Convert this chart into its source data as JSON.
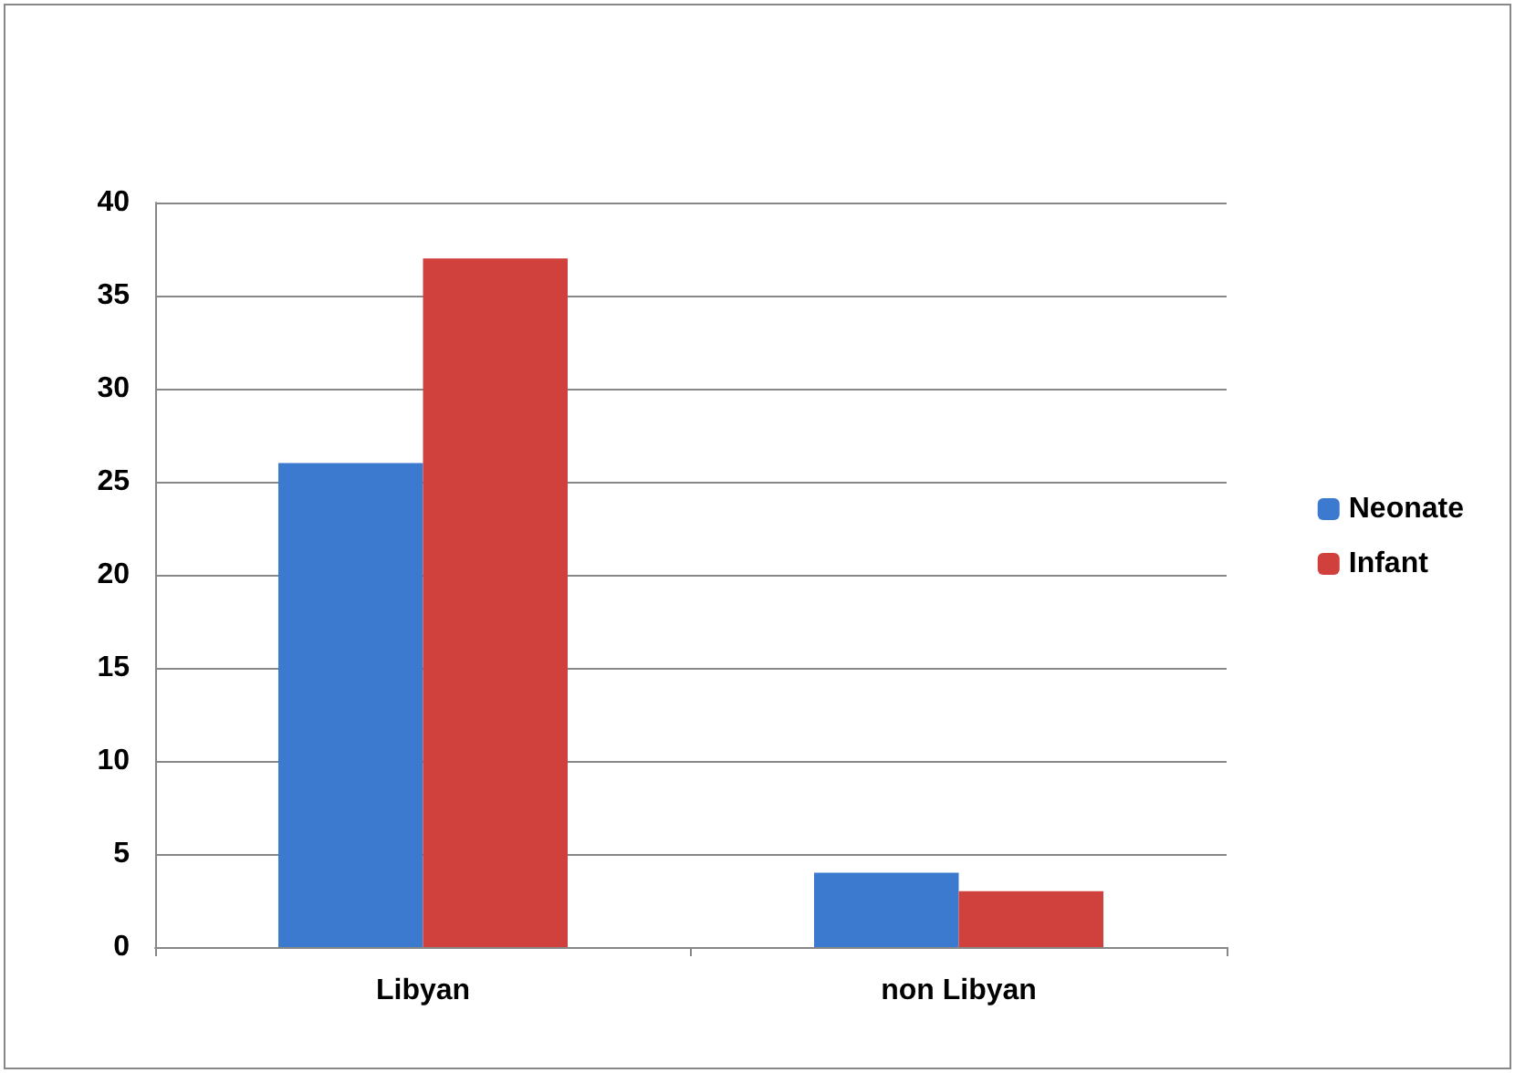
{
  "chart_data": {
    "type": "bar",
    "categories": [
      "Libyan",
      "non Libyan"
    ],
    "series": [
      {
        "name": "Neonate",
        "color": "#3c7ad0",
        "values": [
          26,
          4
        ]
      },
      {
        "name": "Infant",
        "color": "#d0403c",
        "values": [
          37,
          3
        ]
      }
    ],
    "ylim": [
      0,
      40
    ],
    "yticks": [
      0,
      5,
      10,
      15,
      20,
      25,
      30,
      35,
      40
    ],
    "grid": "y",
    "legend": "right"
  }
}
